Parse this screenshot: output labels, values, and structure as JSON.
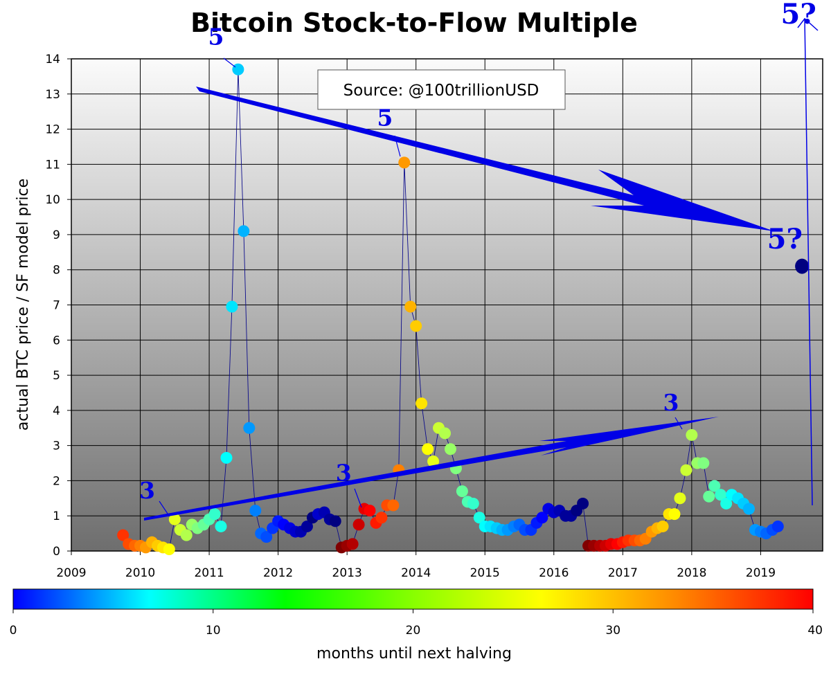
{
  "chart_data": {
    "type": "scatter",
    "title": "Bitcoin Stock-to-Flow Multiple",
    "ylabel": "actual BTC price / SF model price",
    "source_label": "Source: @100trillionUSD",
    "xlim": [
      2009,
      2019.9
    ],
    "ylim": [
      0,
      14
    ],
    "x_ticks": [
      "2009",
      "2010",
      "2011",
      "2012",
      "2013",
      "2014",
      "2015",
      "2016",
      "2017",
      "2018",
      "2019"
    ],
    "y_ticks": [
      "0",
      "1",
      "2",
      "3",
      "4",
      "5",
      "6",
      "7",
      "8",
      "9",
      "10",
      "11",
      "12",
      "13",
      "14"
    ],
    "grid": true,
    "colorbar": {
      "label": "months until next halving",
      "range": [
        0,
        40
      ],
      "ticks": [
        "0",
        "10",
        "20",
        "30",
        "40"
      ],
      "colormap": "jet"
    },
    "series": [
      {
        "x": [
          2009.75,
          2009.83,
          2009.92,
          2010.0,
          2010.08,
          2010.17,
          2010.25,
          2010.33,
          2010.42,
          2010.5,
          2010.58,
          2010.67,
          2010.75,
          2010.83,
          2010.92,
          2011.0,
          2011.08,
          2011.17,
          2011.25,
          2011.33,
          2011.42,
          2011.5,
          2011.58,
          2011.67,
          2011.75,
          2011.83,
          2011.92,
          2012.0,
          2012.08,
          2012.17,
          2012.25,
          2012.33,
          2012.42,
          2012.5,
          2012.58,
          2012.67,
          2012.75,
          2012.83,
          2012.92,
          2013.0,
          2013.08,
          2013.17,
          2013.25,
          2013.33,
          2013.42,
          2013.5,
          2013.58,
          2013.67,
          2013.75,
          2013.83,
          2013.92,
          2014.0,
          2014.08,
          2014.17,
          2014.25,
          2014.33,
          2014.42,
          2014.5,
          2014.58,
          2014.67,
          2014.75,
          2014.83,
          2014.92,
          2015.0,
          2015.08,
          2015.17,
          2015.25,
          2015.33,
          2015.42,
          2015.5,
          2015.58,
          2015.67,
          2015.75,
          2015.83,
          2015.92,
          2016.0,
          2016.08,
          2016.17,
          2016.25,
          2016.33,
          2016.42,
          2016.5,
          2016.58,
          2016.67,
          2016.75,
          2016.83,
          2016.92,
          2017.0,
          2017.08,
          2017.17,
          2017.25,
          2017.33,
          2017.42,
          2017.5,
          2017.58,
          2017.67,
          2017.75,
          2017.83,
          2017.92,
          2018.0,
          2018.08,
          2018.17,
          2018.25,
          2018.33,
          2018.42,
          2018.5,
          2018.58,
          2018.67,
          2018.75,
          2018.83,
          2018.92,
          2019.0,
          2019.08,
          2019.17,
          2019.25
        ],
        "y": [
          0.45,
          0.2,
          0.15,
          0.15,
          0.1,
          0.25,
          0.15,
          0.1,
          0.05,
          0.9,
          0.6,
          0.45,
          0.75,
          0.65,
          0.75,
          0.9,
          1.05,
          0.7,
          2.65,
          6.95,
          13.7,
          9.1,
          3.5,
          1.15,
          0.5,
          0.4,
          0.65,
          0.85,
          0.75,
          0.65,
          0.55,
          0.55,
          0.7,
          0.95,
          1.05,
          1.1,
          0.9,
          0.85,
          0.1,
          0.15,
          0.2,
          0.75,
          1.2,
          1.15,
          0.8,
          0.95,
          1.3,
          1.3,
          2.3,
          11.05,
          6.95,
          6.4,
          4.2,
          2.9,
          2.55,
          3.5,
          3.35,
          2.9,
          2.35,
          1.7,
          1.4,
          1.35,
          0.95,
          0.7,
          0.7,
          0.65,
          0.6,
          0.6,
          0.7,
          0.75,
          0.6,
          0.6,
          0.8,
          0.95,
          1.2,
          1.1,
          1.15,
          1.0,
          1.0,
          1.15,
          1.35,
          0.15,
          0.15,
          0.15,
          0.15,
          0.2,
          0.2,
          0.25,
          0.3,
          0.3,
          0.3,
          0.35,
          0.55,
          0.65,
          0.7,
          1.05,
          1.05,
          1.5,
          2.3,
          3.3,
          2.5,
          2.5,
          1.55,
          1.85,
          1.6,
          1.35,
          1.6,
          1.5,
          1.35,
          1.2,
          0.6,
          0.55,
          0.5,
          0.6,
          0.7
        ],
        "months_until_halving": [
          33,
          32,
          31,
          30,
          29,
          28,
          27,
          26,
          25,
          24,
          23,
          22,
          21,
          20,
          19,
          18,
          17,
          16,
          15,
          14,
          13,
          12,
          11,
          10,
          9,
          8,
          7,
          6,
          5,
          4,
          3,
          2,
          1,
          0,
          3,
          2,
          1,
          0,
          40,
          39,
          38,
          37,
          36,
          35,
          34,
          33,
          32,
          31,
          30,
          29,
          28,
          27,
          26,
          25,
          24,
          23,
          22,
          21,
          20,
          19,
          18,
          17,
          16,
          15,
          14,
          13,
          12,
          11,
          10,
          9,
          8,
          7,
          6,
          5,
          4,
          3,
          2,
          1,
          1,
          0,
          0,
          40,
          39,
          38,
          37,
          36,
          35,
          34,
          33,
          32,
          31,
          30,
          29,
          28,
          27,
          26,
          25,
          24,
          23,
          22,
          21,
          20,
          19,
          18,
          17,
          16,
          15,
          14,
          13,
          12,
          11,
          10,
          9,
          8,
          7
        ]
      },
      {
        "x": [
          2019.6
        ],
        "y": [
          8.1
        ],
        "months_until_halving": [
          0
        ],
        "marker": "projection"
      }
    ],
    "annotations": [
      {
        "text": "5",
        "x": 2011.1,
        "y": 14.4
      },
      {
        "text": "5",
        "x": 2013.55,
        "y": 12.1
      },
      {
        "text": "3",
        "x": 2010.1,
        "y": 1.5
      },
      {
        "text": "3",
        "x": 2012.95,
        "y": 2.0
      },
      {
        "text": "3",
        "x": 2017.7,
        "y": 4.0
      },
      {
        "text": "5?",
        "x": 2019.35,
        "y": 8.6
      },
      {
        "text": "5?",
        "x": 2019.55,
        "y": 15.0
      }
    ]
  }
}
